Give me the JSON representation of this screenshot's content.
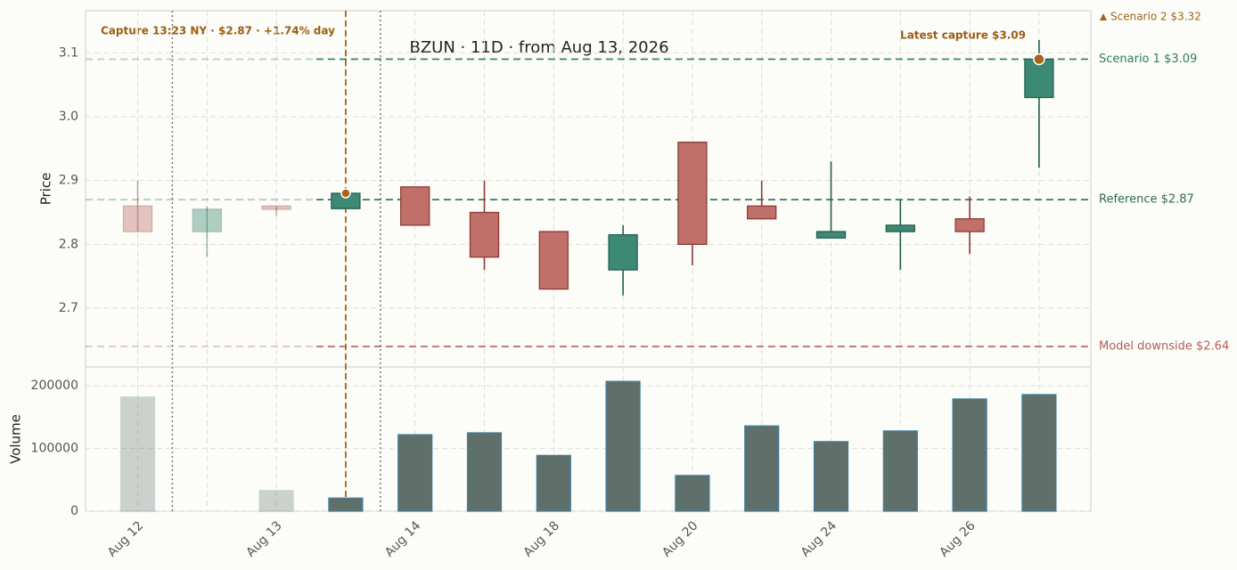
{
  "chart_data": {
    "type": "candlestick",
    "title": "BZUN  ·  11D  ·  from Aug 13, 2026",
    "ylabel": "Price",
    "categories": [
      "Aug 12",
      null,
      "Aug 13",
      null,
      "Aug 14",
      null,
      "Aug 18",
      null,
      "Aug 20",
      null,
      "Aug 24",
      null,
      "Aug 26",
      null
    ],
    "open": [
      2.86,
      2.82,
      2.86,
      2.856,
      2.89,
      2.85,
      2.82,
      2.76,
      2.96,
      2.86,
      2.81,
      2.82,
      2.84,
      3.03
    ],
    "high": [
      2.9,
      2.86,
      2.86,
      2.88,
      2.89,
      2.9,
      2.82,
      2.83,
      2.96,
      2.9,
      2.93,
      2.87,
      2.875,
      3.12
    ],
    "low": [
      2.82,
      2.78,
      2.845,
      2.856,
      2.83,
      2.76,
      2.73,
      2.72,
      2.767,
      2.84,
      2.81,
      2.76,
      2.785,
      2.92
    ],
    "close": [
      2.82,
      2.855,
      2.855,
      2.88,
      2.83,
      2.78,
      2.73,
      2.815,
      2.8,
      2.84,
      2.82,
      2.83,
      2.82,
      3.09
    ],
    "up_color": "#3d8a74",
    "down_color": "#c07068",
    "ylim": [
      2.608,
      3.166
    ],
    "yticks": [
      2.7,
      2.8,
      2.9,
      {
        "value": 3.0,
        "label": "3.0"
      },
      3.1
    ],
    "grid": true,
    "capture_index": 3,
    "session_breaks": [
      0.5,
      3.5
    ],
    "capture_label": "Capture 13:23 NY · $2.87 · +1.74% day",
    "latest_label": "Latest capture $3.09",
    "reference_lines": [
      {
        "label": "Scenario 1 $3.09",
        "value": 3.09,
        "color": "#2e7d62"
      },
      {
        "label": "Reference $2.87",
        "value": 2.87,
        "color": "#2e6b58"
      },
      {
        "label": "Model downside $2.64",
        "value": 2.64,
        "color": "#b0605a"
      }
    ],
    "offchart_label": {
      "label": "Scenario 2 $3.32",
      "value": 3.32,
      "color": "#a0651a"
    },
    "volume": {
      "ylabel": "Volume",
      "values": [
        182000,
        0,
        33000,
        21000,
        122000,
        125000,
        89000,
        207000,
        57000,
        136000,
        111000,
        128000,
        179000,
        186000
      ],
      "color": "#5f6f69",
      "ylim": [
        0,
        230000
      ],
      "yticks": [
        0,
        100000,
        200000
      ]
    }
  }
}
